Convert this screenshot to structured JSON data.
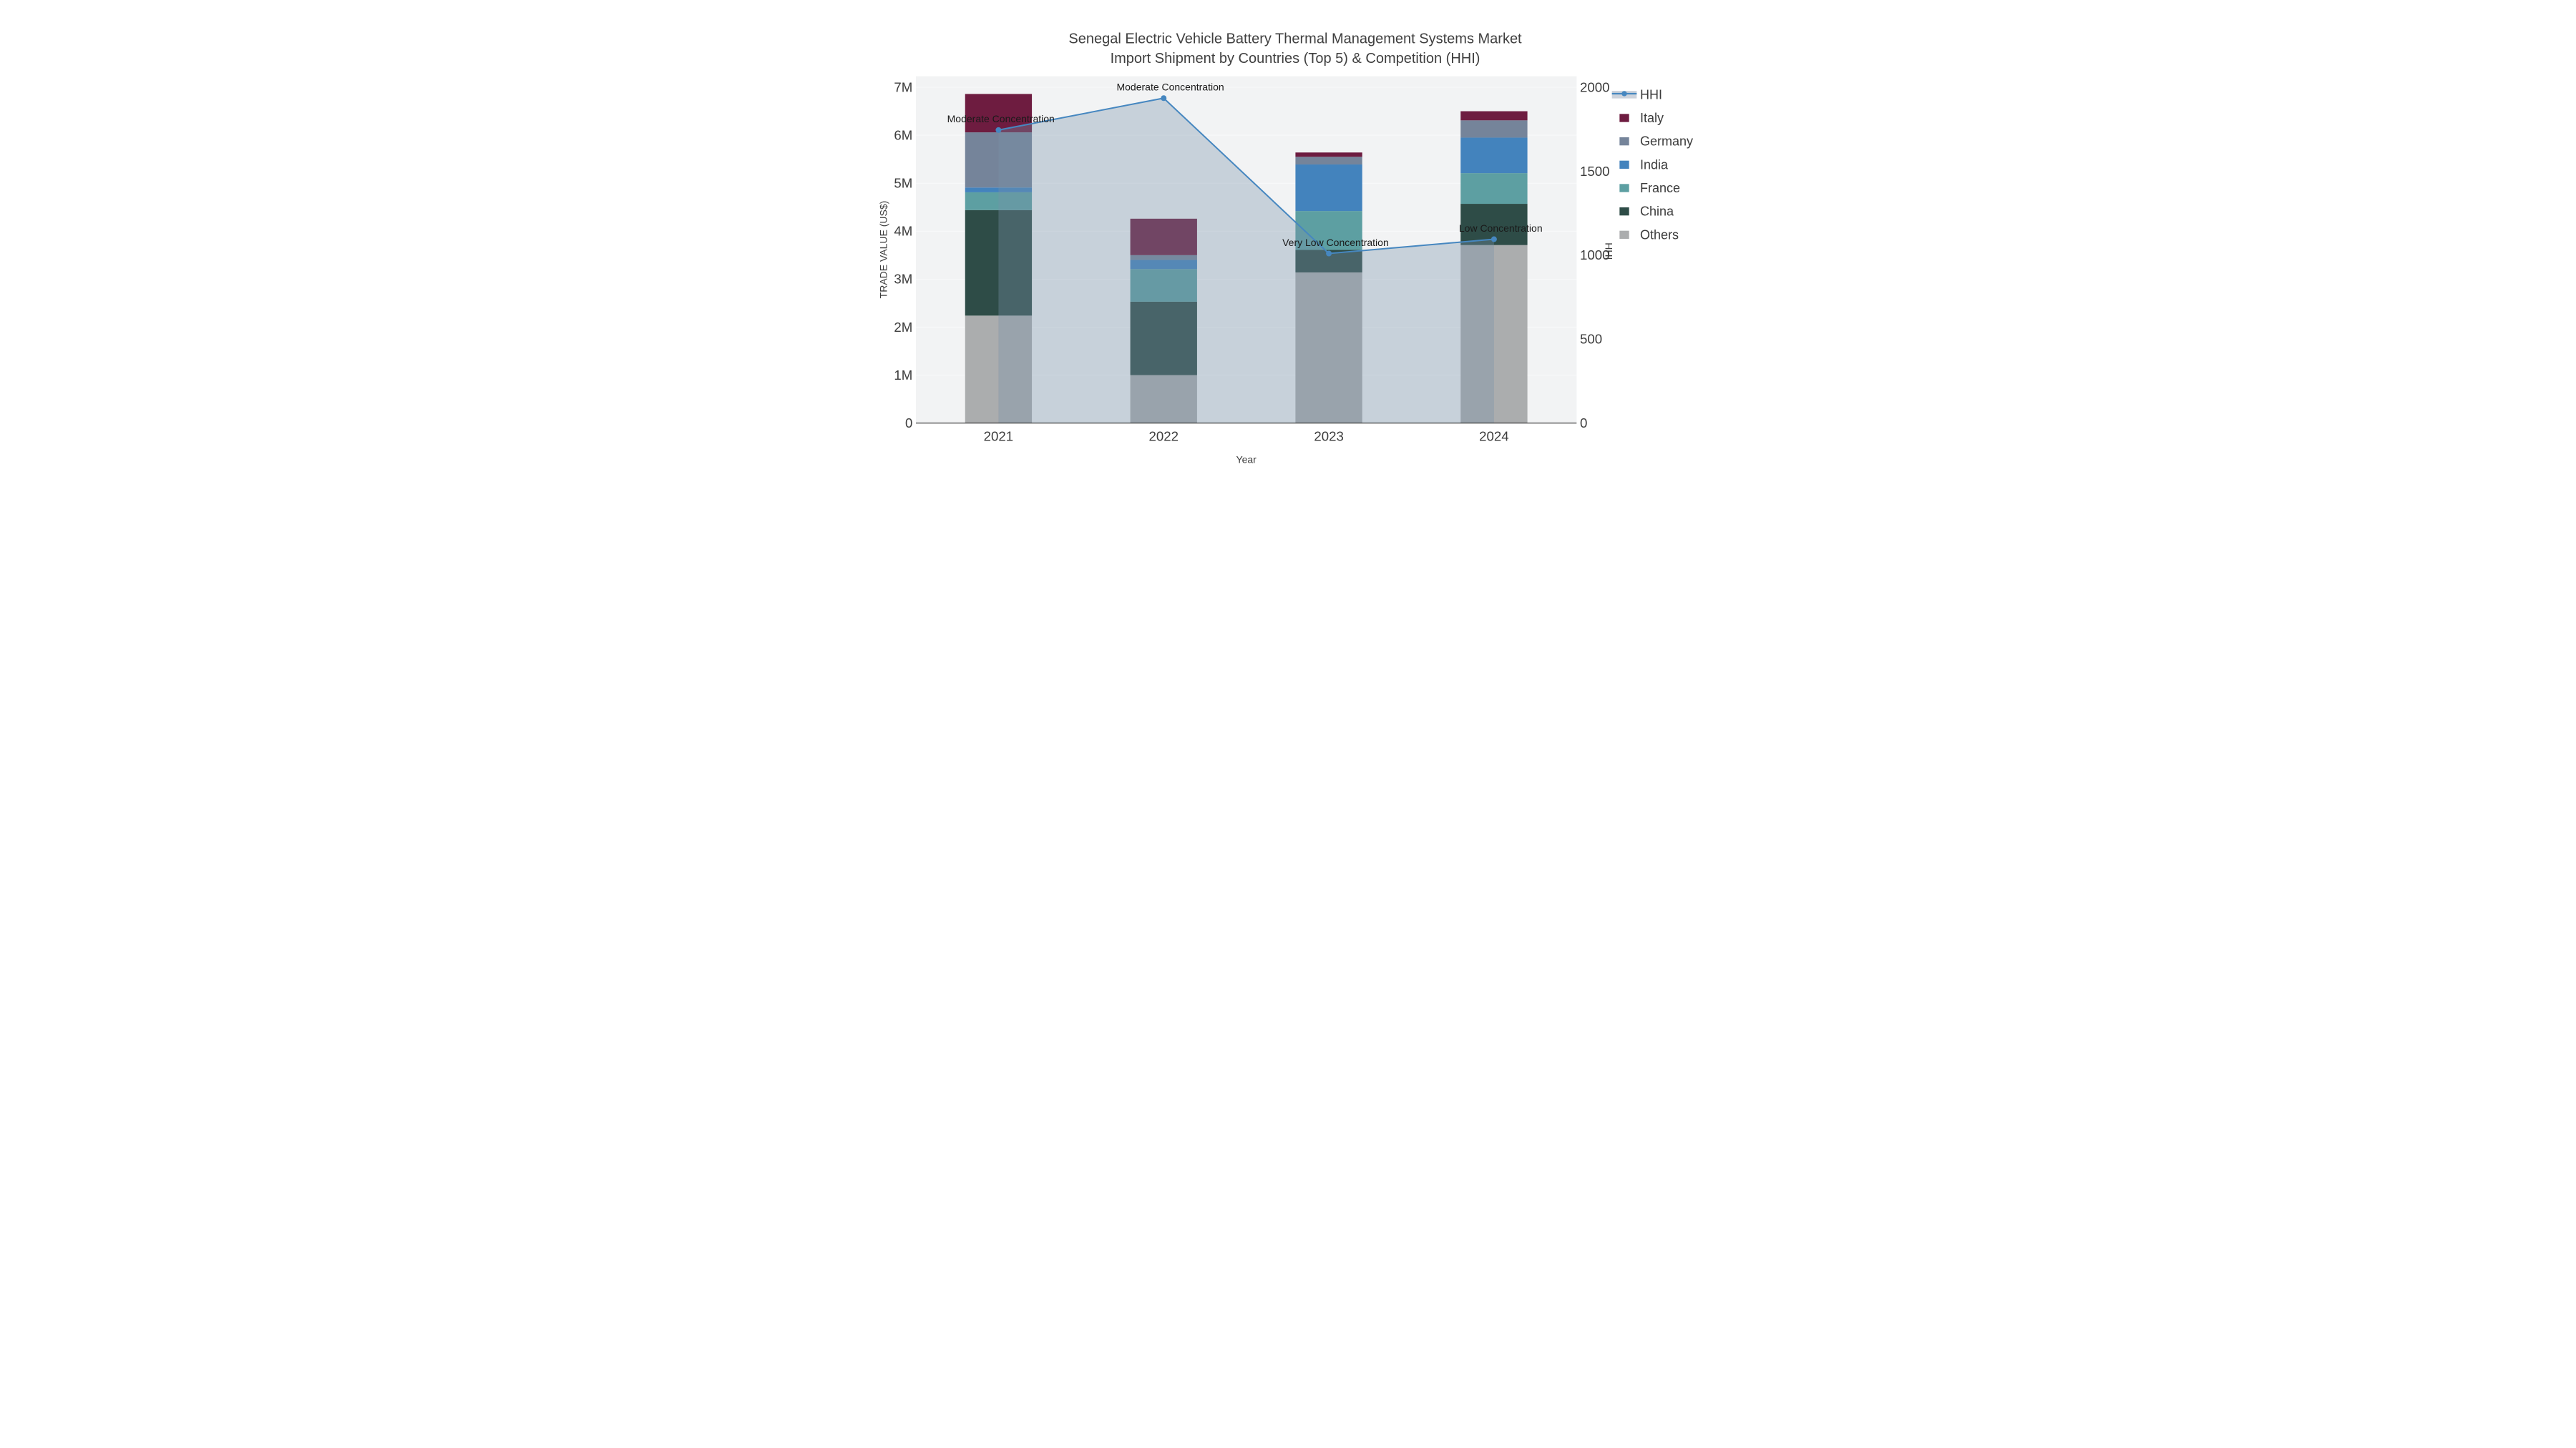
{
  "title": {
    "line1": "Senegal Electric Vehicle Battery Thermal Management Systems Market",
    "line2": "Import Shipment by Countries (Top 5) & Competition (HHI)"
  },
  "chart_data": {
    "type": "combo-stacked-bar-line",
    "categories": [
      "2021",
      "2022",
      "2023",
      "2024"
    ],
    "bar_unit": "M US$",
    "bar_series": [
      {
        "name": "Others",
        "color": "#abadae",
        "values": [
          2.24,
          1.0,
          3.14,
          3.71
        ]
      },
      {
        "name": "China",
        "color": "#2e4c47",
        "values": [
          2.2,
          1.53,
          0.47,
          0.86
        ]
      },
      {
        "name": "France",
        "color": "#5d9fa2",
        "values": [
          0.37,
          0.68,
          0.81,
          0.64
        ]
      },
      {
        "name": "India",
        "color": "#4383bd",
        "values": [
          0.1,
          0.19,
          0.97,
          0.74
        ]
      },
      {
        "name": "Germany",
        "color": "#75849a",
        "values": [
          1.15,
          0.1,
          0.16,
          0.36
        ]
      },
      {
        "name": "Italy",
        "color": "#6e1c40",
        "values": [
          0.8,
          0.76,
          0.09,
          0.19
        ]
      }
    ],
    "bar_totals": [
      6.86,
      4.26,
      5.64,
      6.5
    ],
    "line_series": {
      "name": "HHI",
      "color": "#4687c0",
      "area_color": "rgba(120,145,170,0.35)",
      "values": [
        1745,
        1935,
        1010,
        1095
      ]
    },
    "annotations": [
      {
        "index": 0,
        "text": "Moderate Concentration"
      },
      {
        "index": 1,
        "text": "Moderate Concentration"
      },
      {
        "index": 2,
        "text": "Very Low Concentration"
      },
      {
        "index": 3,
        "text": "Low Concentration"
      }
    ],
    "x_axis": {
      "label": "Year"
    },
    "y_left": {
      "label": "TRADE VALUE (US$)",
      "ticks": [
        "0",
        "1M",
        "2M",
        "3M",
        "4M",
        "5M",
        "6M",
        "7M"
      ],
      "max": 7
    },
    "y_right": {
      "label": "HHI",
      "ticks": [
        "0",
        "500",
        "1000",
        "1500",
        "2000"
      ],
      "max": 2000
    },
    "legend_order": [
      "HHI",
      "Italy",
      "Germany",
      "India",
      "France",
      "China",
      "Others"
    ],
    "layout_hints": {
      "plot_bg": "#f2f3f4",
      "grid_color": "#fafbfc",
      "axis_text_color": "#3d3d3d",
      "baseline_color": "#2f2f2f",
      "annotation_color": "#1a1a1a",
      "legend_position": "right",
      "grid": "on"
    }
  }
}
